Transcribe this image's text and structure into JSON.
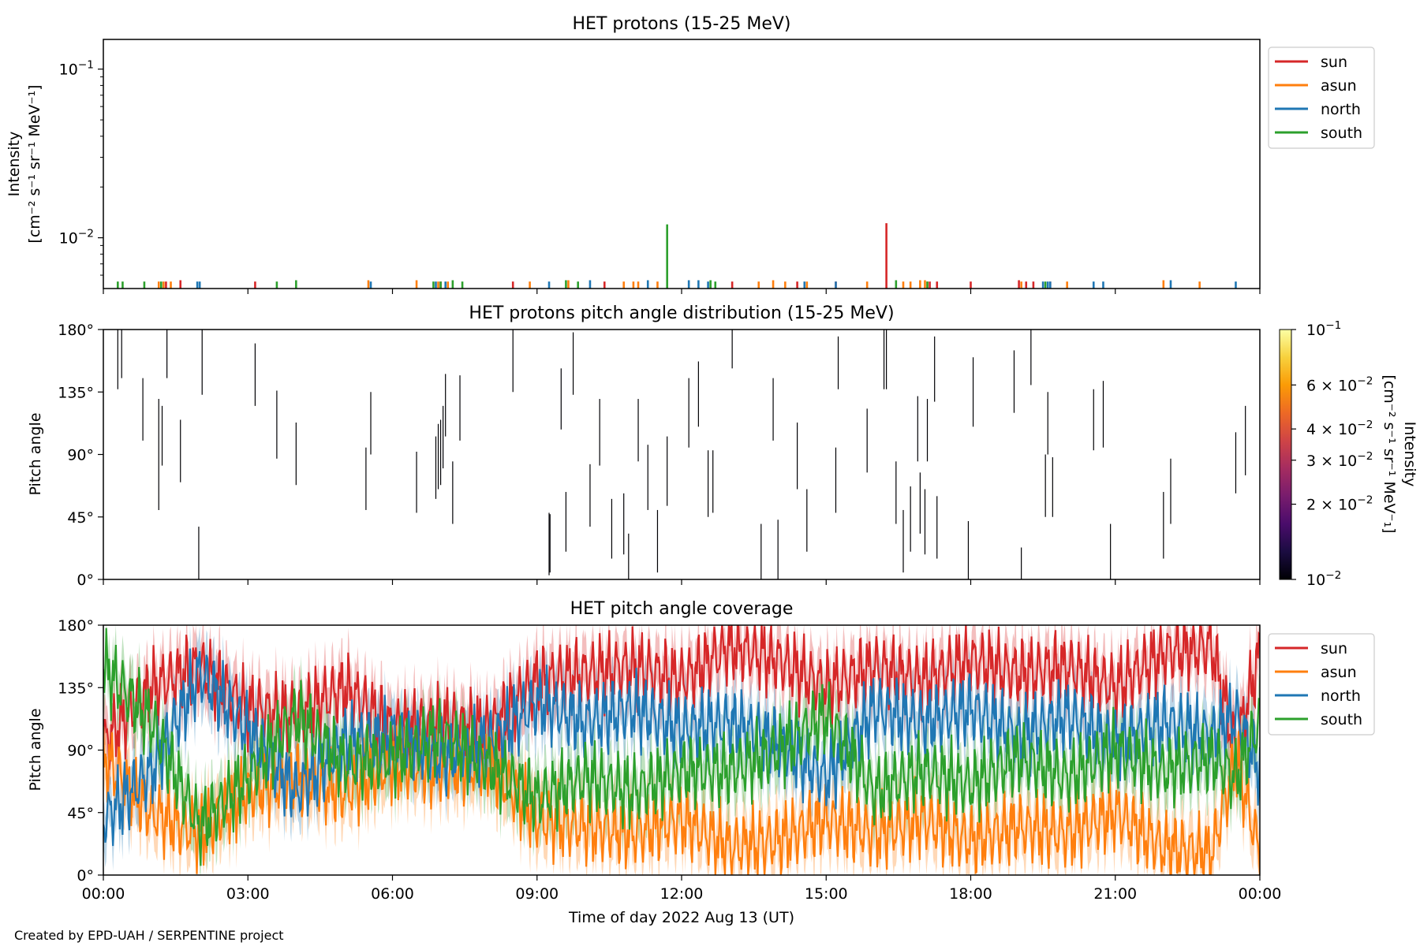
{
  "chart_data": [
    {
      "type": "line",
      "title": "HET protons (15-25 MeV)",
      "ylabel_line1": "Intensity",
      "ylabel_line2": "[cm⁻² s⁻¹ sr⁻¹ MeV⁻¹]",
      "yscale": "log",
      "ylim": [
        0.005,
        0.15
      ],
      "y_ticks": [
        {
          "value": 0.1,
          "base": "10",
          "exp": "−1"
        },
        {
          "value": 0.01,
          "base": "10",
          "exp": "−2"
        }
      ],
      "xlim_hours": [
        0,
        24
      ],
      "baseline": 0.005,
      "legend": {
        "position": "upper-right-outside",
        "entries": [
          "sun",
          "asun",
          "north",
          "south"
        ]
      },
      "series": [
        {
          "name": "sun",
          "color": "#d62728",
          "x": [
            1.3,
            1.6,
            3.15,
            7.0,
            8.5,
            10.4,
            13.05,
            14.4,
            15.2,
            16.25,
            17.15,
            17.3,
            18.0,
            19.0,
            19.15,
            19.3,
            19.65
          ],
          "y": [
            0.0055,
            0.0056,
            0.0055,
            0.0055,
            0.0055,
            0.0055,
            0.0055,
            0.0055,
            0.0055,
            0.0122,
            0.0055,
            0.0055,
            0.0055,
            0.0056,
            0.0055,
            0.0055,
            0.0055
          ]
        },
        {
          "name": "asun",
          "color": "#ff7f0e",
          "x": [
            1.15,
            1.25,
            1.4,
            5.5,
            6.5,
            6.95,
            7.15,
            8.85,
            9.65,
            10.8,
            11.0,
            11.1,
            11.5,
            13.6,
            13.9,
            14.15,
            14.6,
            15.85,
            16.6,
            16.75,
            16.95,
            17.05,
            17.1,
            19.05,
            20.0,
            22.0,
            22.75
          ],
          "y": [
            0.0055,
            0.0055,
            0.0055,
            0.0056,
            0.0056,
            0.0055,
            0.0055,
            0.0055,
            0.0056,
            0.0055,
            0.0055,
            0.0055,
            0.0055,
            0.0055,
            0.0056,
            0.0055,
            0.0055,
            0.0055,
            0.0055,
            0.0055,
            0.0056,
            0.0056,
            0.0055,
            0.0055,
            0.0055,
            0.0056,
            0.0055
          ]
        },
        {
          "name": "north",
          "color": "#1f77b4",
          "x": [
            1.95,
            2.0,
            5.55,
            6.9,
            7.1,
            9.25,
            10.1,
            11.3,
            12.15,
            12.35,
            12.55,
            14.55,
            15.2,
            19.5,
            19.6,
            19.65,
            20.55,
            20.75,
            22.15,
            23.5
          ],
          "y": [
            0.0055,
            0.0055,
            0.0055,
            0.0055,
            0.0055,
            0.0055,
            0.0056,
            0.0056,
            0.0056,
            0.0056,
            0.0055,
            0.0055,
            0.0055,
            0.0055,
            0.0055,
            0.0055,
            0.0055,
            0.0055,
            0.0056,
            0.0055
          ],
          "err_low": [
            0.0055,
            0.0055
          ]
        },
        {
          "name": "south",
          "color": "#2ca02c",
          "x": [
            0.3,
            0.4,
            0.85,
            1.2,
            3.6,
            4.0,
            6.85,
            7.0,
            7.25,
            7.45,
            9.6,
            9.85,
            11.7,
            12.6,
            12.7,
            16.45,
            17.1,
            19.55
          ],
          "y": [
            0.0055,
            0.0055,
            0.0055,
            0.0055,
            0.0055,
            0.0056,
            0.0055,
            0.0055,
            0.0056,
            0.0055,
            0.0056,
            0.0055,
            0.012,
            0.0056,
            0.0055,
            0.0056,
            0.0055,
            0.0055
          ]
        }
      ]
    },
    {
      "type": "heatmap",
      "title": "HET protons pitch angle distribution (15-25 MeV)",
      "ylabel": "Pitch angle",
      "ylim": [
        0,
        180
      ],
      "y_ticks": [
        "0°",
        "45°",
        "90°",
        "135°",
        "180°"
      ],
      "xlim_hours": [
        0,
        24
      ],
      "colorbar": {
        "label": "Intensity",
        "unit": "[cm⁻² s⁻¹ sr⁻¹ MeV⁻₁]",
        "scale": "log",
        "range": [
          0.01,
          0.1
        ],
        "ticks": [
          {
            "value": 0.1,
            "mant": "",
            "base": "10",
            "exp": "−1"
          },
          {
            "value": 0.06,
            "mant": "6 × ",
            "base": "10",
            "exp": "−2"
          },
          {
            "value": 0.04,
            "mant": "4 × ",
            "base": "10",
            "exp": "−2"
          },
          {
            "value": 0.03,
            "mant": "3 × ",
            "base": "10",
            "exp": "−2"
          },
          {
            "value": 0.02,
            "mant": "2 × ",
            "base": "10",
            "exp": "−2"
          },
          {
            "value": 0.01,
            "mant": "",
            "base": "10",
            "exp": "−2"
          }
        ],
        "colors": [
          "#000004",
          "#1b0c41",
          "#4a0c6b",
          "#781c6d",
          "#a52c60",
          "#cf4446",
          "#ed6925",
          "#fb9b06",
          "#f7d13d",
          "#fcffa4"
        ]
      },
      "segments": [
        {
          "t": 0.3,
          "lo": 137,
          "hi": 180
        },
        {
          "t": 0.38,
          "lo": 145,
          "hi": 180
        },
        {
          "t": 0.82,
          "lo": 100,
          "hi": 145
        },
        {
          "t": 1.15,
          "lo": 50,
          "hi": 130
        },
        {
          "t": 1.22,
          "lo": 82,
          "hi": 125
        },
        {
          "t": 1.32,
          "lo": 145,
          "hi": 180
        },
        {
          "t": 1.6,
          "lo": 70,
          "hi": 115
        },
        {
          "t": 1.98,
          "lo": 0,
          "hi": 38
        },
        {
          "t": 2.05,
          "lo": 133,
          "hi": 180
        },
        {
          "t": 3.15,
          "lo": 125,
          "hi": 170
        },
        {
          "t": 3.6,
          "lo": 87,
          "hi": 136
        },
        {
          "t": 4.0,
          "lo": 68,
          "hi": 113
        },
        {
          "t": 5.45,
          "lo": 50,
          "hi": 95
        },
        {
          "t": 5.55,
          "lo": 90,
          "hi": 135
        },
        {
          "t": 6.5,
          "lo": 48,
          "hi": 92
        },
        {
          "t": 6.9,
          "lo": 58,
          "hi": 103
        },
        {
          "t": 6.95,
          "lo": 65,
          "hi": 112
        },
        {
          "t": 7.0,
          "lo": 68,
          "hi": 115
        },
        {
          "t": 7.05,
          "lo": 80,
          "hi": 125
        },
        {
          "t": 7.1,
          "lo": 103,
          "hi": 148
        },
        {
          "t": 7.25,
          "lo": 40,
          "hi": 85
        },
        {
          "t": 7.4,
          "lo": 100,
          "hi": 147
        },
        {
          "t": 8.5,
          "lo": 135,
          "hi": 180
        },
        {
          "t": 9.25,
          "lo": 3,
          "hi": 48
        },
        {
          "t": 9.27,
          "lo": 5,
          "hi": 47
        },
        {
          "t": 9.5,
          "lo": 108,
          "hi": 152
        },
        {
          "t": 9.6,
          "lo": 20,
          "hi": 63
        },
        {
          "t": 9.75,
          "lo": 133,
          "hi": 178
        },
        {
          "t": 10.1,
          "lo": 38,
          "hi": 83
        },
        {
          "t": 10.3,
          "lo": 82,
          "hi": 130
        },
        {
          "t": 10.55,
          "lo": 15,
          "hi": 58
        },
        {
          "t": 10.8,
          "lo": 18,
          "hi": 62
        },
        {
          "t": 10.9,
          "lo": 0,
          "hi": 33
        },
        {
          "t": 11.1,
          "lo": 85,
          "hi": 130
        },
        {
          "t": 11.3,
          "lo": 50,
          "hi": 97
        },
        {
          "t": 11.5,
          "lo": 5,
          "hi": 50
        },
        {
          "t": 11.7,
          "lo": 53,
          "hi": 103
        },
        {
          "t": 12.15,
          "lo": 95,
          "hi": 145
        },
        {
          "t": 12.35,
          "lo": 110,
          "hi": 157
        },
        {
          "t": 12.55,
          "lo": 45,
          "hi": 93
        },
        {
          "t": 12.65,
          "lo": 48,
          "hi": 93
        },
        {
          "t": 13.05,
          "lo": 152,
          "hi": 180
        },
        {
          "t": 13.65,
          "lo": 0,
          "hi": 40
        },
        {
          "t": 13.9,
          "lo": 100,
          "hi": 145
        },
        {
          "t": 14.0,
          "lo": 0,
          "hi": 43
        },
        {
          "t": 14.4,
          "lo": 65,
          "hi": 113
        },
        {
          "t": 14.6,
          "lo": 20,
          "hi": 65
        },
        {
          "t": 15.2,
          "lo": 48,
          "hi": 95
        },
        {
          "t": 15.25,
          "lo": 137,
          "hi": 175
        },
        {
          "t": 15.85,
          "lo": 77,
          "hi": 123
        },
        {
          "t": 16.2,
          "lo": 137,
          "hi": 180
        },
        {
          "t": 16.25,
          "lo": 137,
          "hi": 180
        },
        {
          "t": 16.45,
          "lo": 40,
          "hi": 85
        },
        {
          "t": 16.6,
          "lo": 5,
          "hi": 50
        },
        {
          "t": 16.75,
          "lo": 20,
          "hi": 67
        },
        {
          "t": 16.9,
          "lo": 85,
          "hi": 132
        },
        {
          "t": 16.95,
          "lo": 33,
          "hi": 77
        },
        {
          "t": 17.05,
          "lo": 18,
          "hi": 65
        },
        {
          "t": 17.1,
          "lo": 85,
          "hi": 130
        },
        {
          "t": 17.25,
          "lo": 128,
          "hi": 175
        },
        {
          "t": 17.3,
          "lo": 15,
          "hi": 60
        },
        {
          "t": 17.95,
          "lo": 0,
          "hi": 42
        },
        {
          "t": 18.05,
          "lo": 110,
          "hi": 160
        },
        {
          "t": 18.9,
          "lo": 120,
          "hi": 165
        },
        {
          "t": 19.05,
          "lo": 0,
          "hi": 23
        },
        {
          "t": 19.25,
          "lo": 140,
          "hi": 180
        },
        {
          "t": 19.55,
          "lo": 45,
          "hi": 90
        },
        {
          "t": 19.6,
          "lo": 90,
          "hi": 135
        },
        {
          "t": 19.7,
          "lo": 45,
          "hi": 88
        },
        {
          "t": 20.55,
          "lo": 93,
          "hi": 137
        },
        {
          "t": 20.75,
          "lo": 95,
          "hi": 143
        },
        {
          "t": 20.9,
          "lo": 0,
          "hi": 40
        },
        {
          "t": 22.0,
          "lo": 15,
          "hi": 63
        },
        {
          "t": 22.15,
          "lo": 40,
          "hi": 87
        },
        {
          "t": 23.5,
          "lo": 62,
          "hi": 106
        },
        {
          "t": 23.7,
          "lo": 75,
          "hi": 125
        }
      ]
    },
    {
      "type": "line",
      "title": "HET pitch angle coverage",
      "ylabel": "Pitch angle",
      "xlabel": "Time of day 2022 Aug 13 (UT)",
      "ylim": [
        0,
        180
      ],
      "y_ticks": [
        "0°",
        "45°",
        "90°",
        "135°",
        "180°"
      ],
      "xlim_hours": [
        0,
        24
      ],
      "x_ticks": [
        "00:00",
        "03:00",
        "06:00",
        "09:00",
        "12:00",
        "15:00",
        "18:00",
        "21:00",
        "00:00"
      ],
      "legend": {
        "position": "upper-right-outside",
        "entries": [
          "sun",
          "asun",
          "north",
          "south"
        ]
      },
      "band_halfwidth": 18,
      "series": [
        {
          "name": "sun",
          "color": "#d62728",
          "x": [
            0,
            1,
            2,
            3,
            4,
            5,
            6,
            7,
            8,
            9,
            10,
            11,
            12,
            13,
            14,
            15,
            16,
            17,
            18,
            19,
            20,
            21,
            22,
            23,
            23.5,
            24
          ],
          "y": [
            95,
            135,
            150,
            120,
            115,
            135,
            105,
            110,
            105,
            140,
            145,
            150,
            140,
            165,
            155,
            135,
            150,
            140,
            155,
            145,
            150,
            135,
            160,
            165,
            90,
            160
          ]
        },
        {
          "name": "asun",
          "color": "#ff7f0e",
          "x": [
            0,
            1,
            2,
            3,
            4,
            5,
            6,
            7,
            8,
            9,
            10,
            11,
            12,
            13,
            14,
            15,
            16,
            17,
            18,
            19,
            20,
            21,
            22,
            23,
            23.5,
            24
          ],
          "y": [
            85,
            45,
            30,
            60,
            70,
            60,
            80,
            75,
            80,
            40,
            35,
            30,
            40,
            20,
            25,
            40,
            30,
            40,
            25,
            35,
            30,
            45,
            20,
            15,
            85,
            15
          ]
        },
        {
          "name": "north",
          "color": "#1f77b4",
          "x": [
            0,
            1,
            2,
            3,
            4,
            5,
            6,
            7,
            8,
            9,
            10,
            11,
            12,
            13,
            14,
            15,
            16,
            17,
            18,
            19,
            20,
            21,
            22,
            23,
            23.5,
            24
          ],
          "y": [
            40,
            75,
            145,
            105,
            60,
            95,
            100,
            85,
            95,
            125,
            110,
            120,
            105,
            110,
            95,
            70,
            120,
            110,
            120,
            100,
            115,
            95,
            110,
            100,
            115,
            75
          ]
        },
        {
          "name": "south",
          "color": "#2ca02c",
          "x": [
            0,
            1,
            2,
            3,
            4,
            5,
            6,
            7,
            8,
            9,
            10,
            11,
            12,
            13,
            14,
            15,
            16,
            17,
            18,
            19,
            20,
            21,
            22,
            23,
            23.5,
            24
          ],
          "y": [
            150,
            110,
            35,
            70,
            115,
            80,
            85,
            100,
            80,
            55,
            70,
            60,
            75,
            75,
            90,
            115,
            60,
            75,
            65,
            85,
            70,
            90,
            75,
            85,
            70,
            110
          ]
        }
      ]
    }
  ],
  "footer": {
    "credit": "Created by EPD-UAH / SERPENTINE project"
  }
}
